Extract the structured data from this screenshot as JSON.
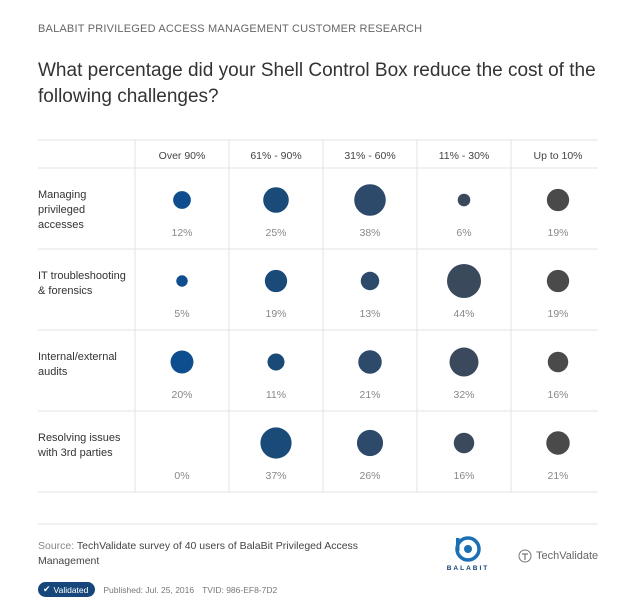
{
  "header": {
    "kicker": "BALABIT PRIVILEGED ACCESS MANAGEMENT CUSTOMER RESEARCH",
    "title": "What percentage did your Shell Control Box reduce the cost of the following challenges?"
  },
  "chart_data": {
    "type": "bubble-matrix",
    "columns": [
      "Over 90%",
      "61% - 90%",
      "31% - 60%",
      "11% - 30%",
      "Up to 10%"
    ],
    "rows": [
      {
        "label": [
          "Managing",
          "privileged",
          "accesses"
        ],
        "values": [
          12,
          25,
          38,
          6,
          19
        ]
      },
      {
        "label": [
          "IT troubleshooting",
          "& forensics"
        ],
        "values": [
          5,
          19,
          13,
          44,
          19
        ]
      },
      {
        "label": [
          "Internal/external",
          "audits"
        ],
        "values": [
          20,
          11,
          21,
          32,
          16
        ]
      },
      {
        "label": [
          "Resolving issues",
          "with 3rd parties"
        ],
        "values": [
          0,
          37,
          26,
          16,
          21
        ]
      }
    ],
    "value_suffix": "%",
    "column_colors": [
      "#0e4e8f",
      "#1a4a78",
      "#2e4a6a",
      "#3a4a5c",
      "#4a4a4a"
    ]
  },
  "footer": {
    "source_label": "Source:",
    "source_text": "TechValidate survey of 40 users of BalaBit Privileged Access Management",
    "badge": "Validated",
    "published": "Published: Jul. 25, 2016",
    "tvid": "TVID: 986-EF8-7D2",
    "balabit_name": "BALABIT",
    "techvalidate_name": "TechValidate"
  }
}
